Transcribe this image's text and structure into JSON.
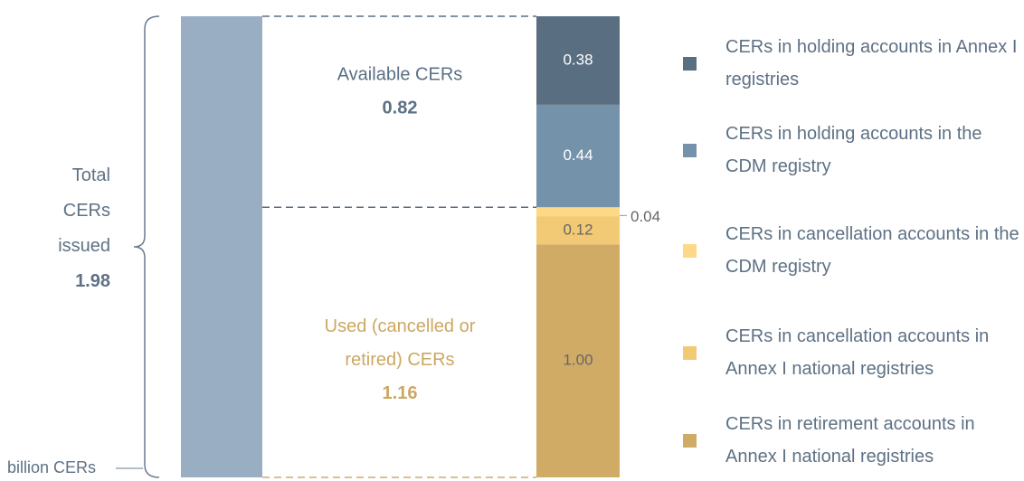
{
  "chart_data": {
    "type": "stacked_bar",
    "unit_label": "billion CERs",
    "total": {
      "lines": [
        "Total",
        "CERs",
        "issued"
      ],
      "value": 1.98,
      "color": "#9aaec3"
    },
    "annotations": [
      {
        "lines": [
          "Available CERs"
        ],
        "value": 0.82,
        "color": "#5b7085"
      },
      {
        "lines": [
          "Used (cancelled or",
          "retired) CERs"
        ],
        "value": 1.16,
        "color": "#cba862"
      }
    ],
    "series": [
      {
        "name": "CERs in holding accounts in Annex I registries",
        "color": "#5a6e82",
        "values": [
          0.38
        ]
      },
      {
        "name": "CERs in holding accounts in the CDM registry",
        "color": "#7592ab",
        "values": [
          0.44
        ]
      },
      {
        "name": "CERs in cancellation accounts in the CDM registry",
        "color": "#fdd886",
        "values": [
          0.04
        ]
      },
      {
        "name": "CERs in cancellation accounts in Annex I national registries",
        "color": "#f2c974",
        "values": [
          0.12
        ]
      },
      {
        "name": "CERs in retirement accounts in Annex I national registries",
        "color": "#cfab66",
        "values": [
          1
        ],
        "value_labels": [
          "1.00"
        ]
      }
    ]
  }
}
